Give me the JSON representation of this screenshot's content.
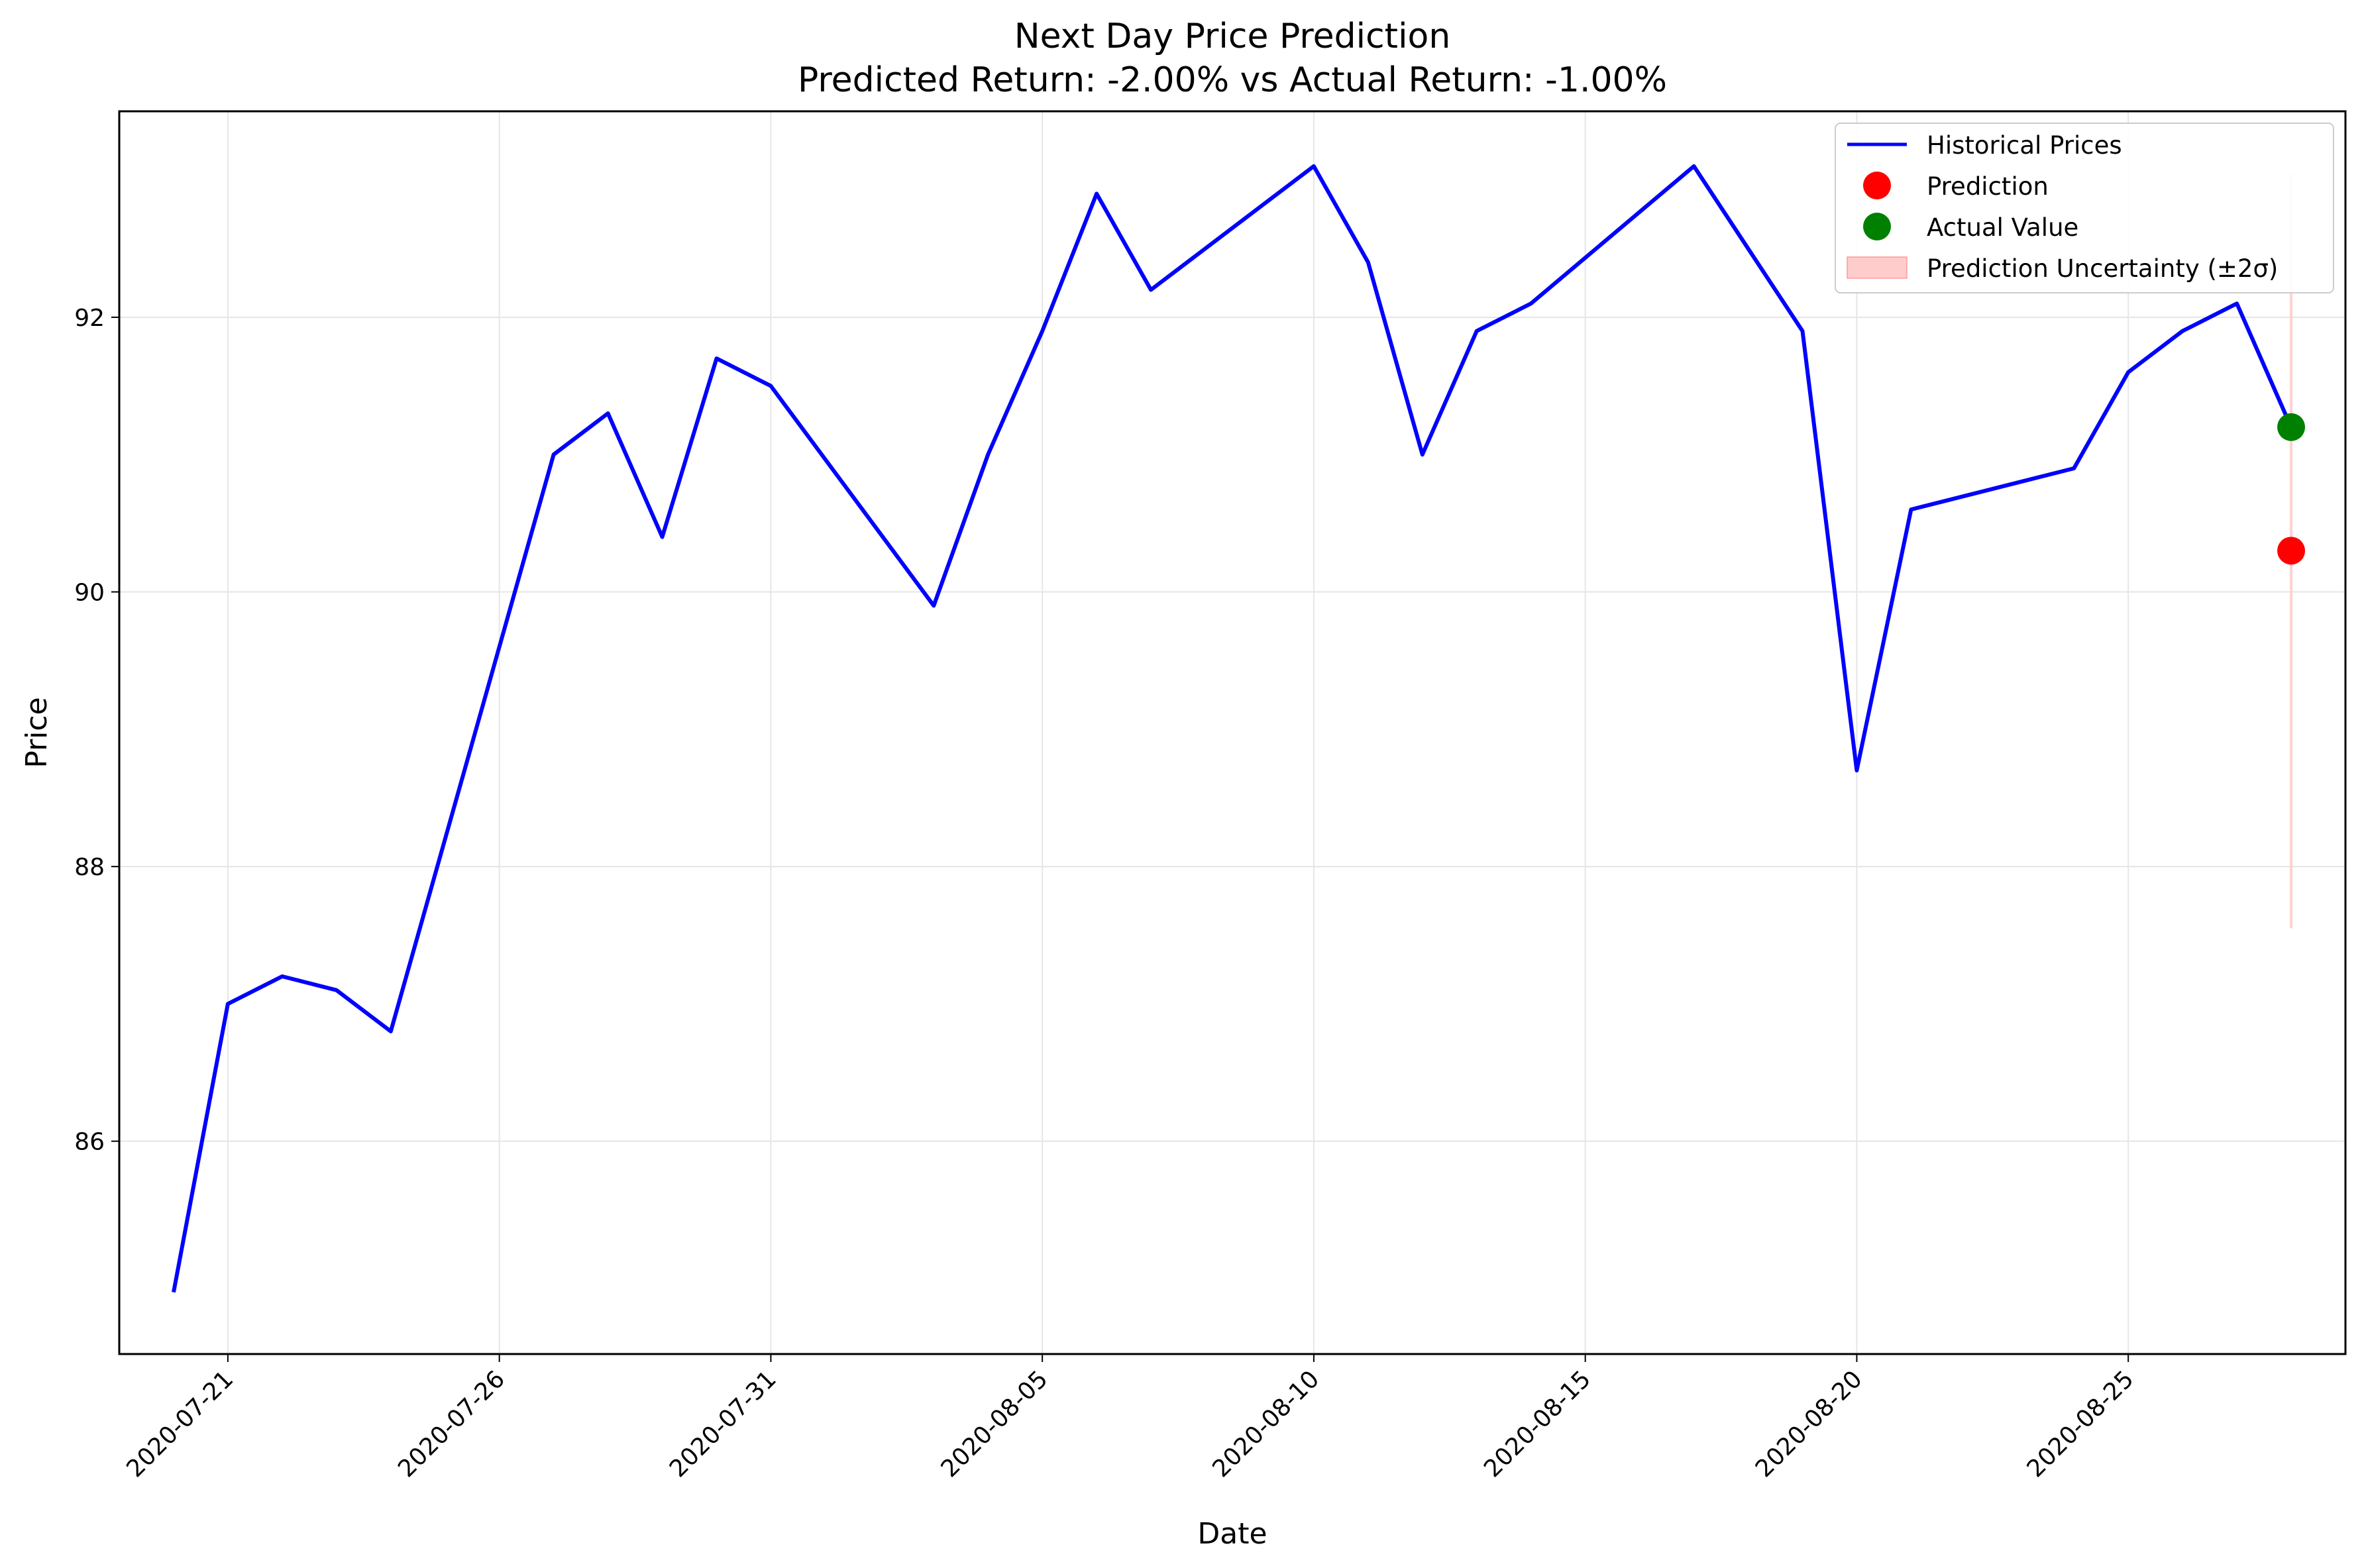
{
  "colors": {
    "historical": "#0000ff",
    "prediction": "#ff0000",
    "actual": "#008000",
    "uncertainty": "#ffcccc",
    "grid": "#e6e6e6"
  },
  "chart_data": {
    "type": "line",
    "title": "Next Day Price Prediction",
    "subtitle": "Predicted Return: -2.00% vs Actual Return: -1.00%",
    "xlabel": "Date",
    "ylabel": "Price",
    "xlim": [
      "2020-07-19",
      "2020-08-29"
    ],
    "ylim": [
      84.45,
      93.5
    ],
    "x_ticks": [
      "2020-07-21",
      "2020-07-26",
      "2020-07-31",
      "2020-08-05",
      "2020-08-10",
      "2020-08-15",
      "2020-08-20",
      "2020-08-25"
    ],
    "y_ticks": [
      86,
      88,
      90,
      92
    ],
    "grid": true,
    "legend_position": "top-right",
    "series": [
      {
        "name": "Historical Prices",
        "type": "line",
        "x": [
          "2020-07-20",
          "2020-07-21",
          "2020-07-22",
          "2020-07-23",
          "2020-07-24",
          "2020-07-27",
          "2020-07-28",
          "2020-07-29",
          "2020-07-30",
          "2020-07-31",
          "2020-08-03",
          "2020-08-04",
          "2020-08-05",
          "2020-08-06",
          "2020-08-07",
          "2020-08-10",
          "2020-08-11",
          "2020-08-12",
          "2020-08-13",
          "2020-08-14",
          "2020-08-17",
          "2020-08-18",
          "2020-08-19",
          "2020-08-20",
          "2020-08-21",
          "2020-08-24",
          "2020-08-25",
          "2020-08-26",
          "2020-08-27",
          "2020-08-28"
        ],
        "y": [
          84.9,
          87.0,
          87.2,
          87.1,
          86.8,
          91.0,
          91.3,
          90.4,
          91.7,
          91.5,
          89.9,
          91.0,
          91.9,
          92.9,
          92.2,
          93.1,
          92.4,
          91.0,
          91.9,
          92.1,
          93.1,
          92.5,
          91.9,
          88.7,
          90.6,
          90.9,
          91.6,
          91.9,
          92.1,
          91.2
        ]
      },
      {
        "name": "Prediction",
        "type": "scatter",
        "x": "2020-08-28",
        "y": 90.3
      },
      {
        "name": "Actual Value",
        "type": "scatter",
        "x": "2020-08-28",
        "y": 91.2
      },
      {
        "name": "Prediction Uncertainty (±2σ)",
        "type": "band",
        "x": "2020-08-28",
        "y_low": 87.55,
        "y_high": 93.05
      }
    ]
  }
}
